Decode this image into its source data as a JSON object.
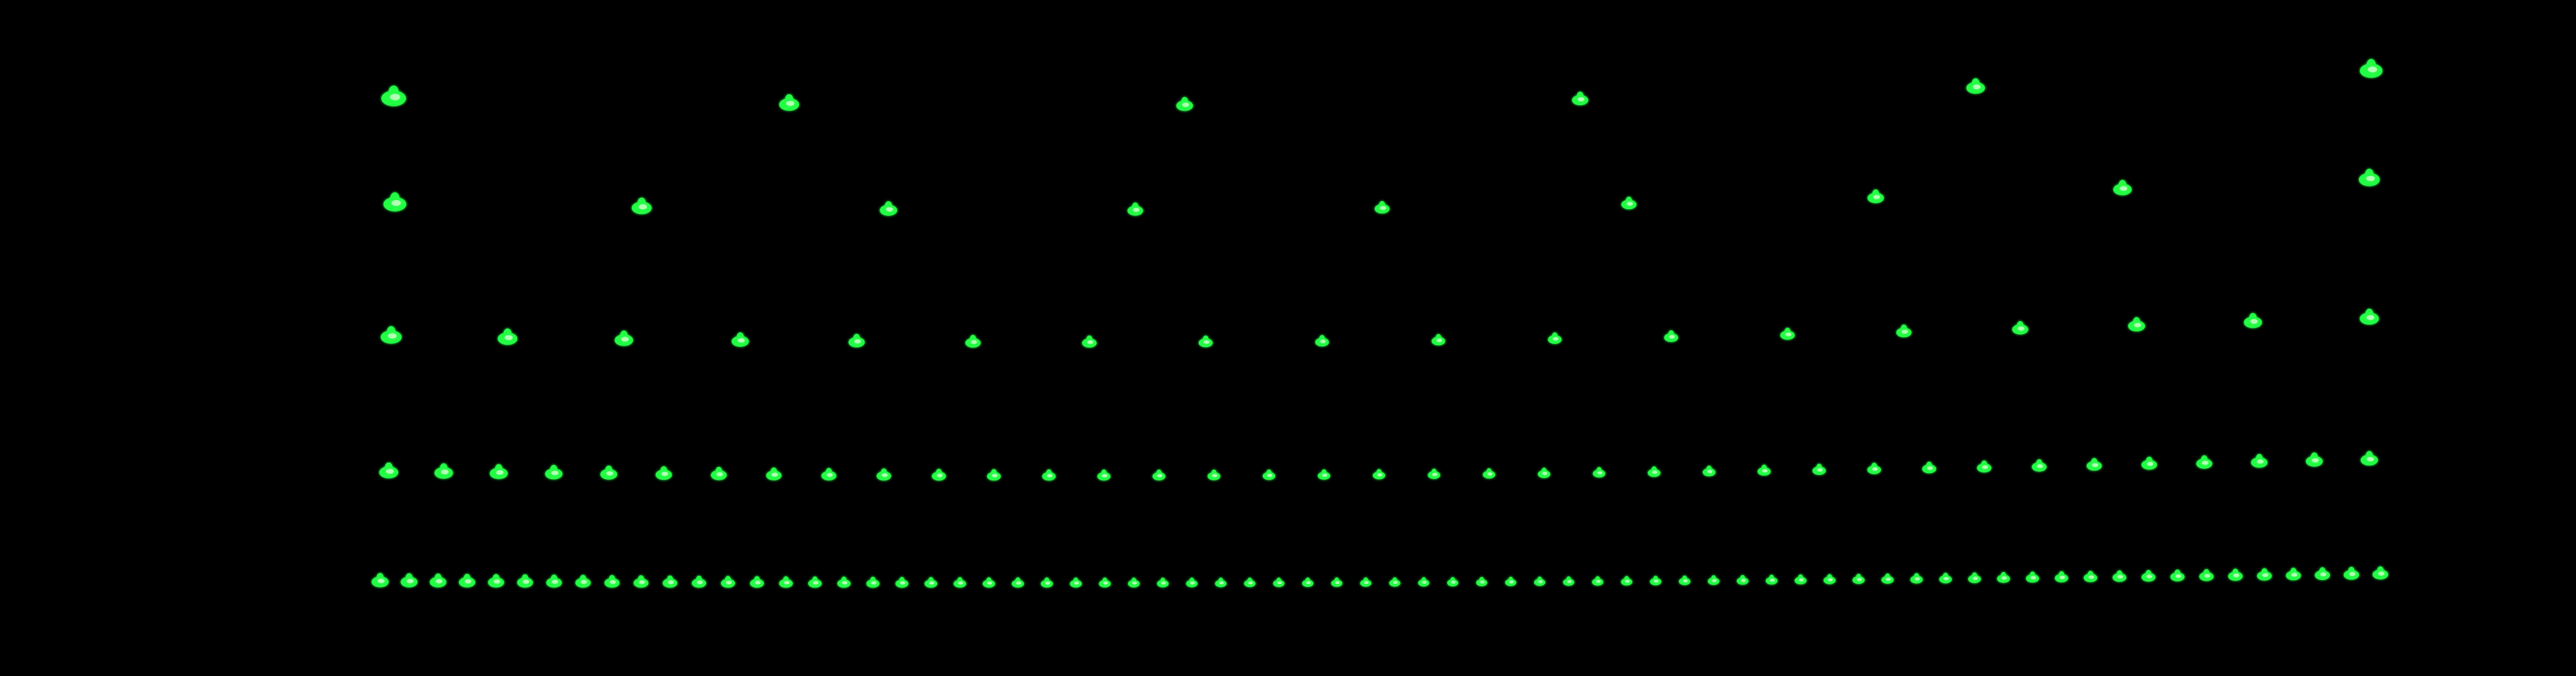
{
  "scene": {
    "description_free": true,
    "background_color": "#000000",
    "dot_colors": {
      "primary": "#22ff44",
      "highlight": "#d6ffd0",
      "glow": "#0bbf2a"
    },
    "rows": [
      {
        "row_index": 1,
        "dot_count": 6
      },
      {
        "row_index": 2,
        "dot_count": 9
      },
      {
        "row_index": 3,
        "dot_count": 18
      },
      {
        "row_index": 4,
        "dot_count": 37
      },
      {
        "row_index": 5,
        "dot_count": 70
      }
    ]
  }
}
